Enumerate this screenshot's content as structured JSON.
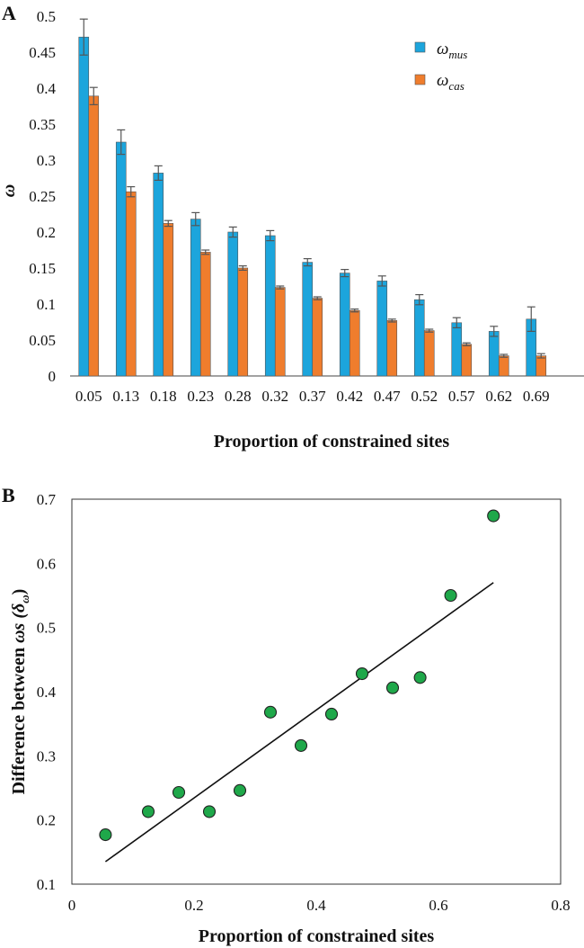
{
  "chart_data": [
    {
      "panel": "A",
      "type": "bar",
      "title": "",
      "xlabel": "Proportion of constrained sites",
      "ylabel": "ω",
      "ylim": [
        0,
        0.5
      ],
      "yticks": [
        "0",
        "0.05",
        "0.1",
        "0.15",
        "0.2",
        "0.25",
        "0.3",
        "0.35",
        "0.4",
        "0.45",
        "0.5"
      ],
      "categories": [
        "0.05",
        "0.13",
        "0.18",
        "0.23",
        "0.28",
        "0.32",
        "0.37",
        "0.42",
        "0.47",
        "0.52",
        "0.57",
        "0.62",
        "0.69"
      ],
      "series": [
        {
          "name": "ω",
          "sub": "mus",
          "color": "#1ca5dc",
          "values": [
            0.471,
            0.325,
            0.282,
            0.218,
            0.2,
            0.195,
            0.158,
            0.143,
            0.132,
            0.106,
            0.074,
            0.062,
            0.079
          ],
          "errors": [
            0.025,
            0.017,
            0.01,
            0.009,
            0.007,
            0.007,
            0.005,
            0.005,
            0.007,
            0.007,
            0.007,
            0.007,
            0.017
          ]
        },
        {
          "name": "ω",
          "sub": "cas",
          "color": "#ef7d2d",
          "values": [
            0.389,
            0.256,
            0.212,
            0.172,
            0.15,
            0.123,
            0.108,
            0.091,
            0.077,
            0.063,
            0.044,
            0.028,
            0.028
          ],
          "errors": [
            0.012,
            0.007,
            0.004,
            0.003,
            0.003,
            0.002,
            0.002,
            0.002,
            0.002,
            0.002,
            0.002,
            0.002,
            0.003
          ]
        }
      ],
      "legend": "top-right"
    },
    {
      "panel": "B",
      "type": "scatter",
      "title": "",
      "xlabel": "Proportion of constrained sites",
      "ylabel_main": "Difference between ",
      "ylabel_omega": "ω",
      "ylabel_s": "s (",
      "ylabel_delta": "δ",
      "ylabel_sub": "ω",
      "ylabel_close": ")",
      "xlim": [
        0,
        0.8
      ],
      "ylim": [
        0.1,
        0.7
      ],
      "xticks": [
        "0",
        "0.2",
        "0.4",
        "0.6",
        "0.8"
      ],
      "yticks": [
        "0.1",
        "0.2",
        "0.3",
        "0.4",
        "0.5",
        "0.6",
        "0.7"
      ],
      "marker_color": "#1fa84a",
      "points": [
        {
          "x": 0.055,
          "y": 0.177
        },
        {
          "x": 0.125,
          "y": 0.213
        },
        {
          "x": 0.175,
          "y": 0.243
        },
        {
          "x": 0.225,
          "y": 0.213
        },
        {
          "x": 0.275,
          "y": 0.246
        },
        {
          "x": 0.325,
          "y": 0.368
        },
        {
          "x": 0.375,
          "y": 0.316
        },
        {
          "x": 0.425,
          "y": 0.365
        },
        {
          "x": 0.475,
          "y": 0.428
        },
        {
          "x": 0.525,
          "y": 0.406
        },
        {
          "x": 0.57,
          "y": 0.422
        },
        {
          "x": 0.62,
          "y": 0.55
        },
        {
          "x": 0.69,
          "y": 0.674
        }
      ],
      "trendline": {
        "x": [
          0.055,
          0.69
        ],
        "y": [
          0.135,
          0.57
        ]
      }
    }
  ]
}
